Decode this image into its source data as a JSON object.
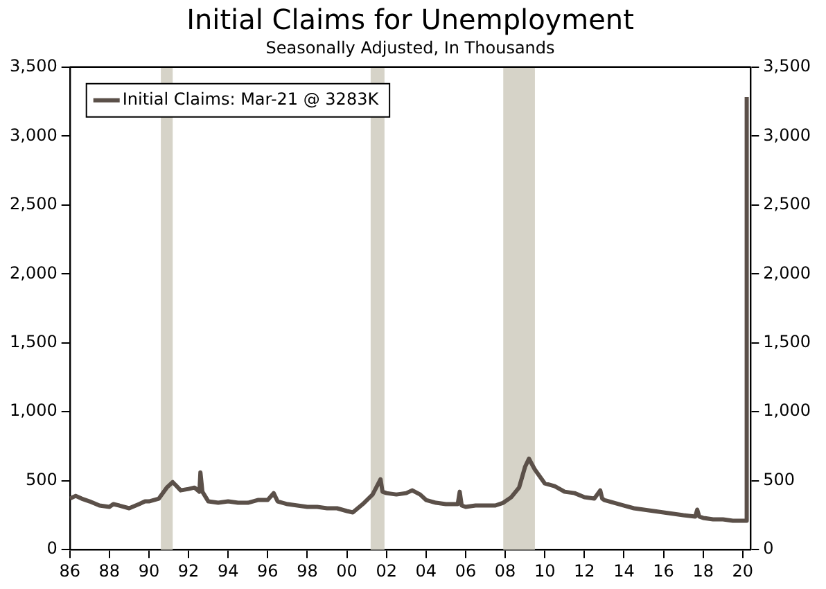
{
  "chart_data": {
    "type": "line",
    "title": "Initial Claims for Unemployment",
    "subtitle": "Seasonally Adjusted, In Thousands",
    "legend": "top left",
    "grid": false,
    "marker": "none",
    "line_style": "solid",
    "x": [
      1986.0,
      1986.3,
      1986.6,
      1987.0,
      1987.5,
      1988.0,
      1988.2,
      1988.5,
      1989.0,
      1989.5,
      1989.8,
      1990.0,
      1990.5,
      1990.9,
      1991.2,
      1991.6,
      1992.0,
      1992.3,
      1992.55,
      1992.6,
      1992.7,
      1993.0,
      1993.5,
      1994.0,
      1994.5,
      1995.0,
      1995.5,
      1996.0,
      1996.3,
      1996.5,
      1997.0,
      1997.5,
      1998.0,
      1998.5,
      1999.0,
      1999.5,
      2000.0,
      2000.3,
      2000.8,
      2001.3,
      2001.7,
      2001.8,
      2002.0,
      2002.5,
      2003.0,
      2003.3,
      2003.7,
      2004.0,
      2004.5,
      2005.0,
      2005.6,
      2005.7,
      2005.8,
      2006.0,
      2006.5,
      2007.0,
      2007.5,
      2007.9,
      2008.3,
      2008.7,
      2009.0,
      2009.2,
      2009.5,
      2010.0,
      2010.5,
      2011.0,
      2011.5,
      2012.0,
      2012.5,
      2012.8,
      2012.9,
      2013.0,
      2013.5,
      2014.0,
      2014.5,
      2015.0,
      2015.5,
      2016.0,
      2016.5,
      2017.0,
      2017.6,
      2017.7,
      2017.8,
      2018.0,
      2018.5,
      2019.0,
      2019.5,
      2020.0,
      2020.15,
      2020.2
    ],
    "series": [
      {
        "name": "Initial Claims: Mar-21 @ 3283K",
        "color": "#5b5049",
        "values": [
          370,
          390,
          370,
          350,
          320,
          310,
          330,
          320,
          300,
          330,
          350,
          350,
          370,
          450,
          490,
          430,
          440,
          450,
          420,
          560,
          420,
          350,
          340,
          350,
          340,
          340,
          360,
          360,
          410,
          350,
          330,
          320,
          310,
          310,
          300,
          300,
          280,
          270,
          330,
          400,
          510,
          420,
          410,
          400,
          410,
          430,
          400,
          360,
          340,
          330,
          330,
          420,
          320,
          310,
          320,
          320,
          320,
          340,
          380,
          450,
          600,
          660,
          580,
          480,
          460,
          420,
          410,
          380,
          370,
          430,
          370,
          360,
          340,
          320,
          300,
          290,
          280,
          270,
          260,
          250,
          240,
          290,
          240,
          230,
          220,
          220,
          210,
          210,
          210,
          3283
        ]
      }
    ],
    "xlim": [
      1986,
      2020.4
    ],
    "xticks": [
      {
        "value": 1986,
        "label": "86"
      },
      {
        "value": 1988,
        "label": "88"
      },
      {
        "value": 1990,
        "label": "90"
      },
      {
        "value": 1992,
        "label": "92"
      },
      {
        "value": 1994,
        "label": "94"
      },
      {
        "value": 1996,
        "label": "96"
      },
      {
        "value": 1998,
        "label": "98"
      },
      {
        "value": 2000,
        "label": "00"
      },
      {
        "value": 2002,
        "label": "02"
      },
      {
        "value": 2004,
        "label": "04"
      },
      {
        "value": 2006,
        "label": "06"
      },
      {
        "value": 2008,
        "label": "08"
      },
      {
        "value": 2010,
        "label": "10"
      },
      {
        "value": 2012,
        "label": "12"
      },
      {
        "value": 2014,
        "label": "14"
      },
      {
        "value": 2016,
        "label": "16"
      },
      {
        "value": 2018,
        "label": "18"
      },
      {
        "value": 2020,
        "label": "20"
      }
    ],
    "ylim": [
      0,
      3500
    ],
    "yticks": [
      0,
      500,
      {
        "value": 1000,
        "label": "1,000"
      },
      {
        "value": 1500,
        "label": "1,500"
      },
      {
        "value": 2000,
        "label": "2,000"
      },
      {
        "value": 2500,
        "label": "2,500"
      },
      {
        "value": 3000,
        "label": "3,000"
      },
      {
        "value": 3500,
        "label": "3,500"
      }
    ],
    "y2lim": [
      0,
      3500
    ],
    "y2ticks": [
      0,
      500,
      {
        "value": 1000,
        "label": "1,000"
      },
      {
        "value": 1500,
        "label": "1,500"
      },
      {
        "value": 2000,
        "label": "2,000"
      },
      {
        "value": 2500,
        "label": "2,500"
      },
      {
        "value": 3000,
        "label": "3,000"
      },
      {
        "value": 3500,
        "label": "3,500"
      }
    ],
    "bands": [
      {
        "axis": "x",
        "from": 1990.6,
        "to": 1991.2,
        "color": "#d6d3c8"
      },
      {
        "axis": "x",
        "from": 2001.2,
        "to": 2001.9,
        "color": "#d6d3c8"
      },
      {
        "axis": "x",
        "from": 2007.9,
        "to": 2009.5,
        "color": "#d6d3c8"
      }
    ]
  }
}
